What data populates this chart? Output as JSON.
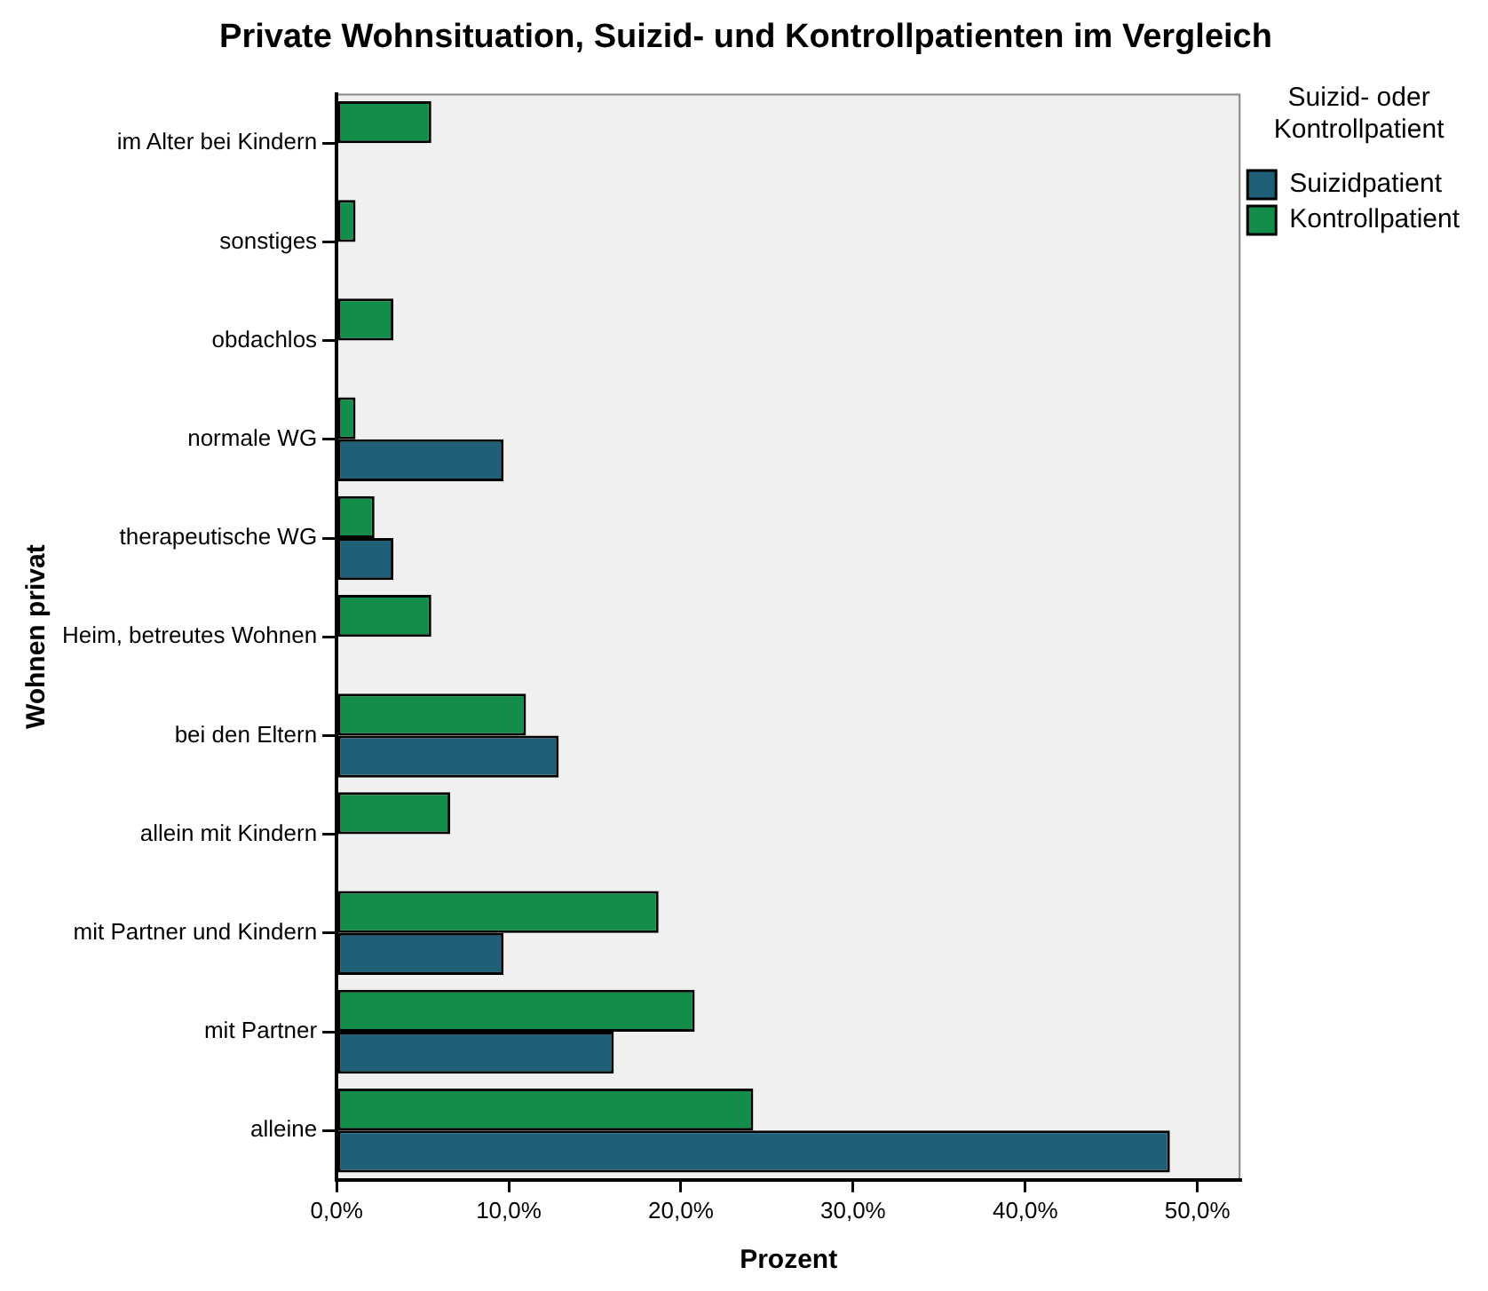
{
  "chart_data": {
    "type": "bar",
    "orientation": "horizontal",
    "title": "Private Wohnsituation, Suizid- und Kontrollpatienten im Vergleich",
    "xlabel": "Prozent",
    "ylabel": "Wohnen privat",
    "legend_title": "Suizid- oder Kontrollpatient",
    "legend": "top right",
    "grid": false,
    "categories": [
      "im Alter bei Kindern",
      "sonstiges",
      "obdachlos",
      "normale WG",
      "therapeutische WG",
      "Heim, betreutes Wohnen",
      "bei den Eltern",
      "allein mit Kindern",
      "mit Partner und Kindern",
      "mit Partner",
      "alleine"
    ],
    "series": [
      {
        "name": "Suizidpatient",
        "color": "#1f5f78",
        "values": [
          null,
          null,
          null,
          9.7,
          3.3,
          null,
          12.9,
          null,
          9.7,
          16.1,
          48.4
        ]
      },
      {
        "name": "Kontrollpatient",
        "color": "#138d4a",
        "values": [
          5.5,
          1.1,
          3.3,
          1.1,
          2.2,
          5.5,
          11.0,
          6.6,
          18.7,
          20.8,
          24.2
        ]
      }
    ],
    "xlim": [
      0,
      52.5
    ],
    "xticks": [
      {
        "value": 0,
        "label": "0,0%"
      },
      {
        "value": 10,
        "label": "10,0%"
      },
      {
        "value": 20,
        "label": "20,0%"
      },
      {
        "value": 30,
        "label": "30,0%"
      },
      {
        "value": 40,
        "label": "40,0%"
      },
      {
        "value": 50,
        "label": "50,0%"
      }
    ]
  }
}
